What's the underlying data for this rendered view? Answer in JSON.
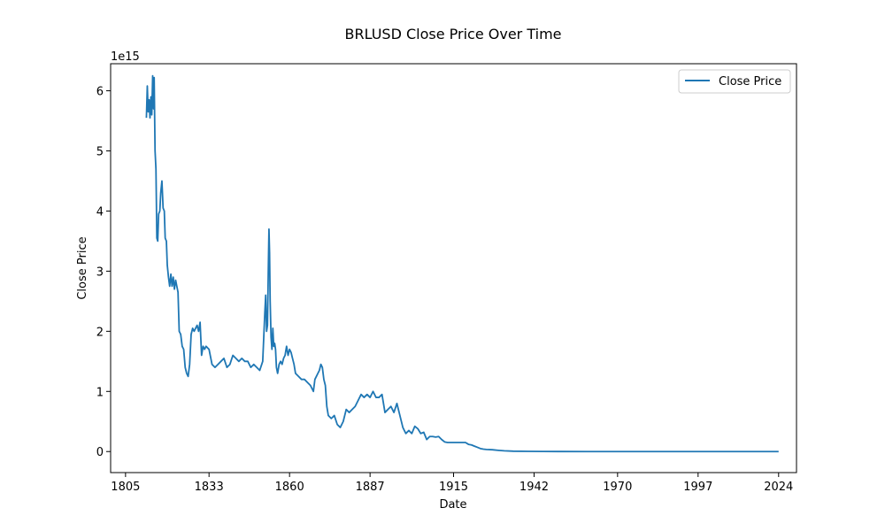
{
  "chart_data": {
    "type": "line",
    "title": "BRLUSD Close Price Over Time",
    "xlabel": "Date",
    "ylabel": "Close Price",
    "y_offset_label": "1e15",
    "xlim": [
      1800,
      2030
    ],
    "ylim": [
      -0.35,
      6.45
    ],
    "y_scale_factor": "1e15",
    "x_ticks": [
      1805,
      1833,
      1860,
      1887,
      1915,
      1942,
      1970,
      1997,
      2024
    ],
    "y_ticks": [
      0,
      1,
      2,
      3,
      4,
      5,
      6
    ],
    "grid": false,
    "legend_position": "top-right",
    "line_color": "#1f77b4",
    "series": [
      {
        "name": "Close Price",
        "points": [
          [
            1812.0,
            5.55
          ],
          [
            1812.3,
            6.08
          ],
          [
            1812.6,
            5.65
          ],
          [
            1812.9,
            5.85
          ],
          [
            1813.2,
            5.55
          ],
          [
            1813.5,
            5.9
          ],
          [
            1813.8,
            5.6
          ],
          [
            1814.1,
            6.25
          ],
          [
            1814.4,
            5.7
          ],
          [
            1814.6,
            6.22
          ],
          [
            1814.9,
            5.0
          ],
          [
            1815.2,
            4.7
          ],
          [
            1815.5,
            3.55
          ],
          [
            1815.8,
            3.5
          ],
          [
            1816.1,
            3.95
          ],
          [
            1816.5,
            4.0
          ],
          [
            1816.8,
            4.3
          ],
          [
            1817.2,
            4.5
          ],
          [
            1817.6,
            4.05
          ],
          [
            1818.0,
            4.0
          ],
          [
            1818.3,
            3.55
          ],
          [
            1818.7,
            3.5
          ],
          [
            1819.0,
            3.1
          ],
          [
            1819.4,
            2.9
          ],
          [
            1819.8,
            2.75
          ],
          [
            1820.2,
            2.95
          ],
          [
            1820.6,
            2.75
          ],
          [
            1821.0,
            2.9
          ],
          [
            1821.4,
            2.7
          ],
          [
            1821.8,
            2.85
          ],
          [
            1822.2,
            2.75
          ],
          [
            1822.6,
            2.65
          ],
          [
            1823.0,
            2.0
          ],
          [
            1823.5,
            1.95
          ],
          [
            1824.0,
            1.75
          ],
          [
            1824.5,
            1.7
          ],
          [
            1825.0,
            1.4
          ],
          [
            1825.5,
            1.3
          ],
          [
            1826.0,
            1.25
          ],
          [
            1826.5,
            1.45
          ],
          [
            1827.0,
            1.95
          ],
          [
            1827.5,
            2.05
          ],
          [
            1828.0,
            2.0
          ],
          [
            1828.5,
            2.05
          ],
          [
            1829.0,
            2.1
          ],
          [
            1829.5,
            2.0
          ],
          [
            1830.0,
            2.15
          ],
          [
            1830.5,
            1.6
          ],
          [
            1831.0,
            1.75
          ],
          [
            1831.5,
            1.7
          ],
          [
            1832.0,
            1.75
          ],
          [
            1833.0,
            1.7
          ],
          [
            1834.0,
            1.45
          ],
          [
            1835.0,
            1.4
          ],
          [
            1836.0,
            1.45
          ],
          [
            1837.0,
            1.5
          ],
          [
            1838.0,
            1.55
          ],
          [
            1839.0,
            1.4
          ],
          [
            1840.0,
            1.45
          ],
          [
            1841.0,
            1.6
          ],
          [
            1842.0,
            1.55
          ],
          [
            1843.0,
            1.5
          ],
          [
            1844.0,
            1.55
          ],
          [
            1845.0,
            1.5
          ],
          [
            1846.0,
            1.5
          ],
          [
            1847.0,
            1.4
          ],
          [
            1848.0,
            1.45
          ],
          [
            1849.0,
            1.4
          ],
          [
            1850.0,
            1.35
          ],
          [
            1851.0,
            1.5
          ],
          [
            1851.7,
            2.3
          ],
          [
            1852.0,
            2.6
          ],
          [
            1852.3,
            2.0
          ],
          [
            1852.6,
            2.1
          ],
          [
            1852.9,
            3.1
          ],
          [
            1853.1,
            3.7
          ],
          [
            1853.3,
            3.3
          ],
          [
            1853.5,
            2.5
          ],
          [
            1853.8,
            1.9
          ],
          [
            1854.1,
            1.7
          ],
          [
            1854.4,
            2.05
          ],
          [
            1854.7,
            1.75
          ],
          [
            1855.0,
            1.8
          ],
          [
            1855.3,
            1.7
          ],
          [
            1855.6,
            1.4
          ],
          [
            1856.0,
            1.3
          ],
          [
            1856.5,
            1.45
          ],
          [
            1857.0,
            1.5
          ],
          [
            1857.5,
            1.45
          ],
          [
            1858.0,
            1.55
          ],
          [
            1858.5,
            1.6
          ],
          [
            1859.0,
            1.75
          ],
          [
            1859.5,
            1.6
          ],
          [
            1860.0,
            1.7
          ],
          [
            1860.5,
            1.65
          ],
          [
            1861.0,
            1.55
          ],
          [
            1861.5,
            1.45
          ],
          [
            1862.0,
            1.3
          ],
          [
            1863.0,
            1.25
          ],
          [
            1864.0,
            1.2
          ],
          [
            1865.0,
            1.2
          ],
          [
            1866.0,
            1.15
          ],
          [
            1867.0,
            1.1
          ],
          [
            1868.0,
            1.0
          ],
          [
            1868.5,
            1.2
          ],
          [
            1869.0,
            1.25
          ],
          [
            1869.5,
            1.3
          ],
          [
            1870.0,
            1.35
          ],
          [
            1870.5,
            1.45
          ],
          [
            1871.0,
            1.4
          ],
          [
            1871.5,
            1.2
          ],
          [
            1872.0,
            1.1
          ],
          [
            1872.5,
            0.75
          ],
          [
            1873.0,
            0.6
          ],
          [
            1874.0,
            0.55
          ],
          [
            1875.0,
            0.6
          ],
          [
            1876.0,
            0.45
          ],
          [
            1877.0,
            0.4
          ],
          [
            1878.0,
            0.5
          ],
          [
            1879.0,
            0.7
          ],
          [
            1880.0,
            0.65
          ],
          [
            1881.0,
            0.7
          ],
          [
            1882.0,
            0.75
          ],
          [
            1883.0,
            0.85
          ],
          [
            1884.0,
            0.95
          ],
          [
            1885.0,
            0.9
          ],
          [
            1886.0,
            0.95
          ],
          [
            1887.0,
            0.9
          ],
          [
            1888.0,
            1.0
          ],
          [
            1889.0,
            0.9
          ],
          [
            1890.0,
            0.9
          ],
          [
            1891.0,
            0.95
          ],
          [
            1892.0,
            0.65
          ],
          [
            1893.0,
            0.7
          ],
          [
            1894.0,
            0.75
          ],
          [
            1895.0,
            0.65
          ],
          [
            1896.0,
            0.8
          ],
          [
            1897.0,
            0.6
          ],
          [
            1898.0,
            0.4
          ],
          [
            1899.0,
            0.3
          ],
          [
            1900.0,
            0.35
          ],
          [
            1901.0,
            0.3
          ],
          [
            1902.0,
            0.42
          ],
          [
            1903.0,
            0.38
          ],
          [
            1904.0,
            0.3
          ],
          [
            1905.0,
            0.32
          ],
          [
            1906.0,
            0.2
          ],
          [
            1907.0,
            0.25
          ],
          [
            1908.0,
            0.25
          ],
          [
            1909.0,
            0.24
          ],
          [
            1910.0,
            0.25
          ],
          [
            1911.0,
            0.2
          ],
          [
            1912.0,
            0.16
          ],
          [
            1913.0,
            0.15
          ],
          [
            1914.0,
            0.15
          ],
          [
            1915.0,
            0.15
          ],
          [
            1916.0,
            0.15
          ],
          [
            1917.0,
            0.15
          ],
          [
            1918.0,
            0.15
          ],
          [
            1919.0,
            0.15
          ],
          [
            1920.0,
            0.12
          ],
          [
            1921.0,
            0.11
          ],
          [
            1922.0,
            0.09
          ],
          [
            1923.0,
            0.07
          ],
          [
            1924.0,
            0.05
          ],
          [
            1925.0,
            0.04
          ],
          [
            1926.0,
            0.035
          ],
          [
            1928.0,
            0.03
          ],
          [
            1930.0,
            0.02
          ],
          [
            1932.0,
            0.012
          ],
          [
            1935.0,
            0.006
          ],
          [
            1940.0,
            0.003
          ],
          [
            1945.0,
            0.001
          ],
          [
            1950.0,
            0.0005
          ],
          [
            1960.0,
            0.0
          ],
          [
            1970.0,
            0.0
          ],
          [
            1980.0,
            0.0
          ],
          [
            1990.0,
            0.0
          ],
          [
            2000.0,
            0.0
          ],
          [
            2010.0,
            0.0
          ],
          [
            2024.0,
            0.0
          ]
        ]
      }
    ]
  }
}
